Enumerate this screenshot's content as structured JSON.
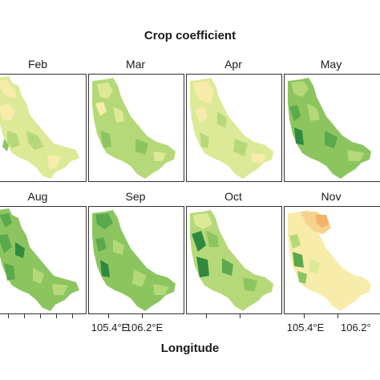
{
  "title": "Crop coefficient",
  "x_axis_label": "Longitude",
  "months": [
    "Feb",
    "Mar",
    "Apr",
    "May",
    "Aug",
    "Sep",
    "Oct",
    "Nov"
  ],
  "bottom_row_ticks": [
    {
      "panel": "Sep",
      "labels": [
        "105.4°E",
        "106.2°E"
      ]
    },
    {
      "panel": "Nov",
      "labels": [
        "105.4°E",
        "106.2°"
      ]
    }
  ],
  "colors": {
    "very_low": "#f2b46a",
    "low": "#f7ecaa",
    "mid_low": "#dcea97",
    "mid": "#b5d978",
    "mid_high": "#8cc560",
    "high": "#5aa94e",
    "very_high": "#2f8a3e"
  }
}
